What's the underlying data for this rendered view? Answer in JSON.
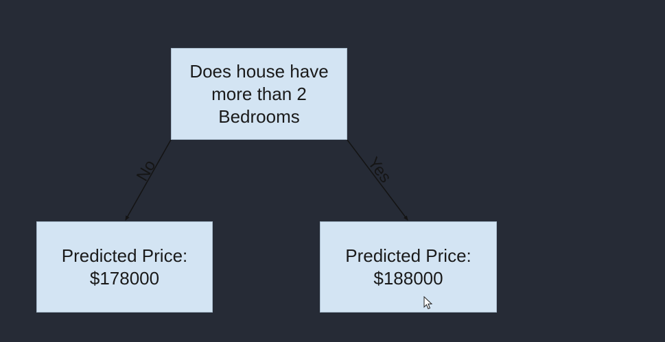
{
  "diagram": {
    "root": {
      "text": "Does house have\nmore than 2\nBedrooms"
    },
    "edges": {
      "left_label": "No",
      "right_label": "Yes"
    },
    "left_leaf": {
      "text": "Predicted Price:\n$178000"
    },
    "right_leaf": {
      "text": "Predicted Price:\n$188000"
    }
  },
  "colors": {
    "background": "#262b36",
    "node_fill": "#d3e4f3",
    "edge": "#141414"
  },
  "icons": {
    "cursor": "mouse-pointer-icon"
  }
}
